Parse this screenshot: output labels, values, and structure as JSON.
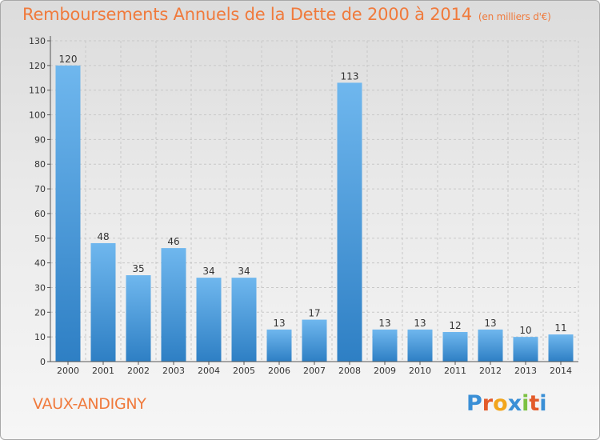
{
  "title": "Remboursements Annuels de la Dette de 2000 à 2014",
  "unit": "(en milliers d'€)",
  "town": "VAUX-ANDIGNY",
  "logo": {
    "text": "Proxiti",
    "letters": [
      "P",
      "r",
      "o",
      "x",
      "i",
      "t",
      "i"
    ],
    "colors": [
      "#3a8fd6",
      "#e35b2a",
      "#f2a51c",
      "#3a8fd6",
      "#7cc142",
      "#e35b2a",
      "#3a8fd6"
    ]
  },
  "colors": {
    "bar_top": "#6fb7ee",
    "bar_bottom": "#2e7fc4",
    "title": "#f07a3c",
    "grid": "#c8c8c8"
  },
  "chart_data": {
    "type": "bar",
    "title": "Remboursements Annuels de la Dette de 2000 à 2014",
    "xlabel": "",
    "ylabel": "",
    "categories": [
      "2000",
      "2001",
      "2002",
      "2003",
      "2004",
      "2005",
      "2006",
      "2007",
      "2008",
      "2009",
      "2010",
      "2011",
      "2012",
      "2013",
      "2014"
    ],
    "values": [
      120,
      48,
      35,
      46,
      34,
      34,
      13,
      17,
      113,
      13,
      13,
      12,
      13,
      10,
      11
    ],
    "ylim": [
      0,
      130
    ],
    "yticks": [
      0,
      10,
      20,
      30,
      40,
      50,
      60,
      70,
      80,
      90,
      100,
      110,
      120,
      130
    ],
    "grid": true,
    "data_labels": true
  }
}
